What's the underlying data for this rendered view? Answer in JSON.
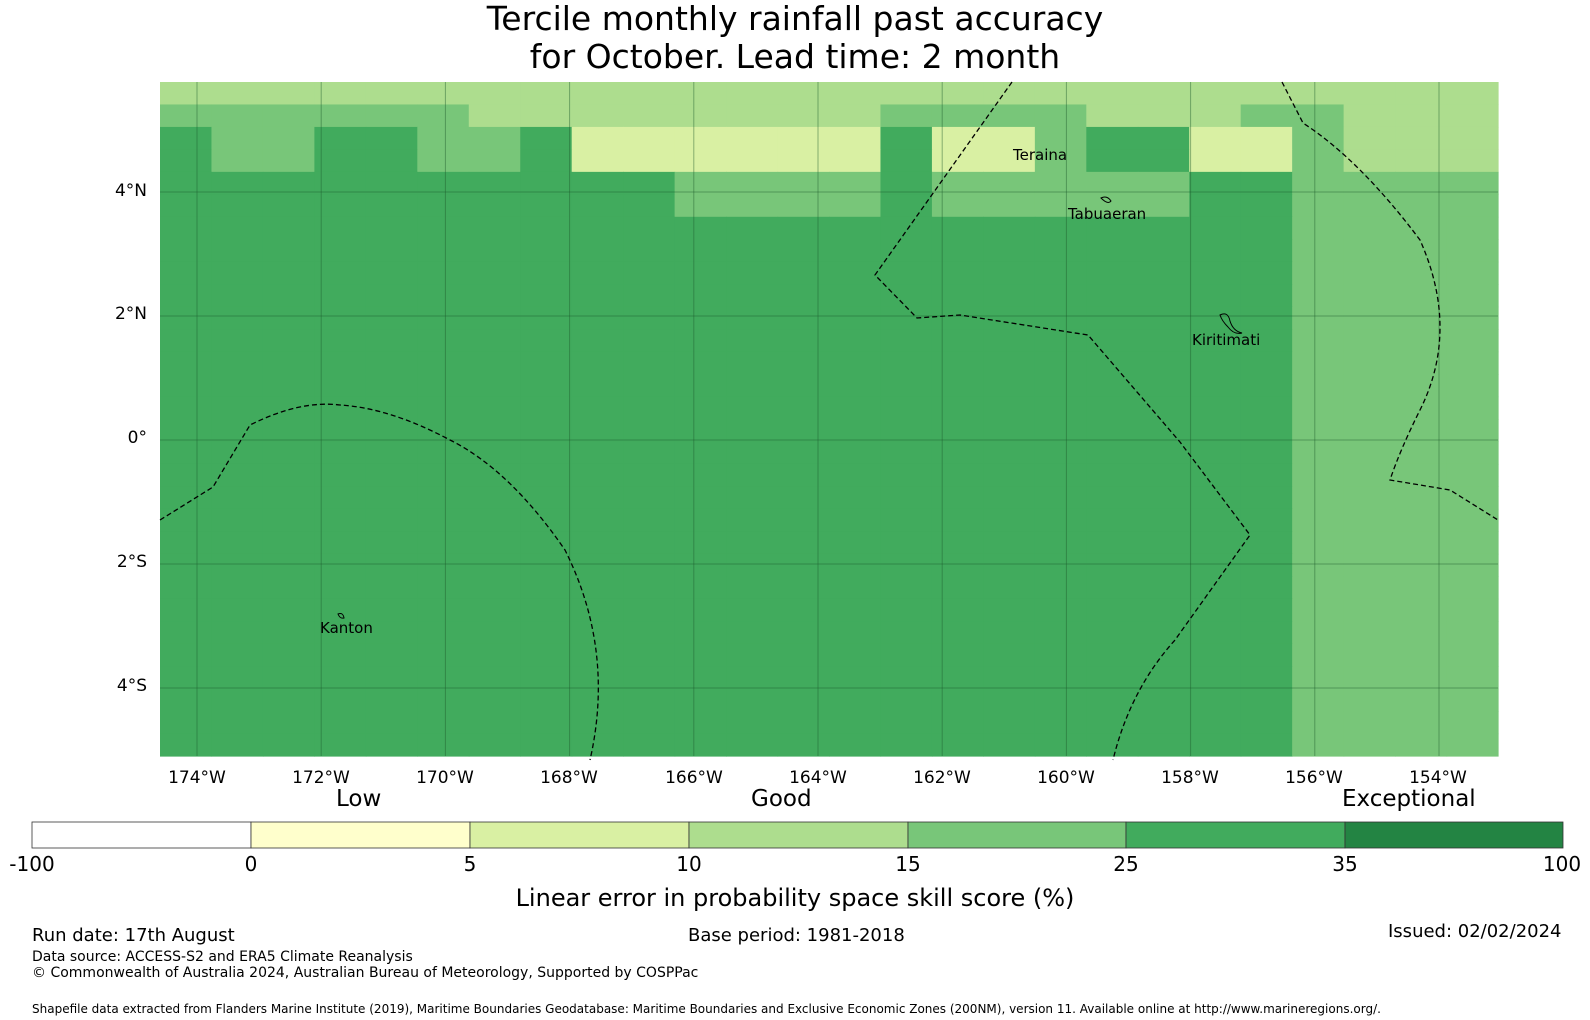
{
  "title": {
    "line1": "Tercile monthly rainfall past accuracy",
    "line2": "for October. Lead time: 2 month"
  },
  "map": {
    "lat_labels": [
      "4°N",
      "2°N",
      "0°",
      "2°S",
      "4°S"
    ],
    "lon_labels": [
      "174°W",
      "172°W",
      "170°W",
      "168°W",
      "166°W",
      "164°W",
      "162°W",
      "160°W",
      "158°W",
      "156°W",
      "154°W"
    ],
    "places": [
      "Teraina",
      "Tabuaeran",
      "Kiritimati",
      "Kanton"
    ],
    "grid_levels": [
      "33333333333333333333333333",
      "44444433333333444433344333",
      "54455445222222522455224333",
      "54455445222222522455224333",
      "55555555554444544444554444",
      "55555555554444544444554444",
      "55555555555555555555554444",
      "55555555555555555555554444",
      "55555555555555555555554444",
      "55555555555555555555554444",
      "55555555555555555555554444",
      "55555555555555555555554444",
      "55555555555555555555554444",
      "55555555555555555555554444",
      "55555555555555555555554444",
      "55555555555555555555554444",
      "55555555555555555555554444",
      "55555555555555555555554444",
      "55555555555555555555554444",
      "55555555555555555555554444",
      "55555555555555555555554444",
      "55555555555555555555554444",
      "55555555555555555555554444",
      "55555555555555555555554444",
      "55555555555555555555554444",
      "55555555555555555555554444",
      "55555555555555555555554444",
      "55555555555555555555554444",
      "55555555555555555555554444",
      "55555555555555555555554444"
    ],
    "colors": {
      "1": "#ffffcc",
      "2": "#d9f0a3",
      "3": "#addd8e",
      "4": "#78c679",
      "5": "#41ab5d",
      "6": "#238443"
    }
  },
  "colorbar": {
    "categories": [
      "Low",
      "Good",
      "Exceptional"
    ],
    "ticks": [
      "-100",
      "0",
      "5",
      "10",
      "15",
      "25",
      "35",
      "100"
    ],
    "colors": [
      "#ffffff",
      "#ffffcc",
      "#d9f0a3",
      "#addd8e",
      "#78c679",
      "#41ab5d",
      "#238443"
    ],
    "title": "Linear error in probability space skill score (%)"
  },
  "footer": {
    "run_date": "Run date: 17th August",
    "base_period": "Base period: 1981-2018",
    "issued": "Issued: 02/02/2024",
    "data_source": "Data source: ACCESS-S2 and ERA5 Climate Reanalysis",
    "copyright": "© Commonwealth of Australia 2024, Australian Bureau of Meteorology, Supported by COSPPac",
    "shapefile": "Shapefile data extracted from Flanders Marine Institute (2019), Maritime Boundaries Geodatabase: Maritime Boundaries and Exclusive Economic Zones (200NM), version 11. Available online at http://www.marineregions.org/."
  }
}
